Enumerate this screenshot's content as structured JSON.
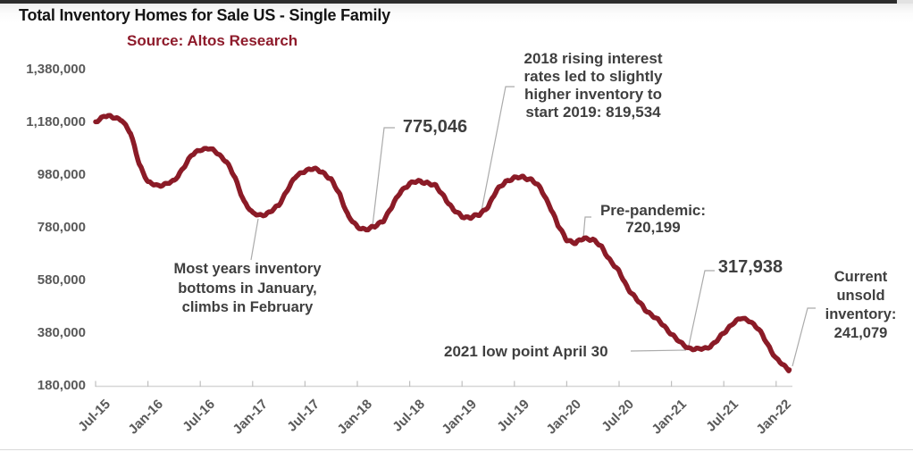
{
  "page": {
    "title": "Total Inventory Homes for Sale US - Single Family",
    "source": "Source: Altos Research"
  },
  "colors": {
    "line": "#8B1B27",
    "source_text": "#8E1B2B",
    "annotation_text": "#3f3f3f",
    "axis_label": "#595959",
    "axis_line": "#d6d6d6",
    "tick": "#bfbfbf",
    "leader": "#ababab",
    "top_bar": "#2b2b2b"
  },
  "chart_data": {
    "type": "line",
    "title": "Total Inventory Homes for Sale US - Single Family",
    "source": "Altos Research",
    "grid": false,
    "legend": "none",
    "ylim": [
      180000,
      1380000
    ],
    "x_unit": "months since Jul-2015",
    "y_ticks": [
      {
        "label": "1,380,000",
        "v": 1380000
      },
      {
        "label": "1,180,000",
        "v": 1180000
      },
      {
        "label": "980,000",
        "v": 980000
      },
      {
        "label": "780,000",
        "v": 780000
      },
      {
        "label": "580,000",
        "v": 580000
      },
      {
        "label": "380,000",
        "v": 380000
      },
      {
        "label": "180,000",
        "v": 180000
      }
    ],
    "x_ticks": [
      {
        "label": "Jul-15",
        "m": 0
      },
      {
        "label": "Jan-16",
        "m": 6
      },
      {
        "label": "Jul-16",
        "m": 12
      },
      {
        "label": "Jan-17",
        "m": 18
      },
      {
        "label": "Jul-17",
        "m": 24
      },
      {
        "label": "Jan-18",
        "m": 30
      },
      {
        "label": "Jul-18",
        "m": 36
      },
      {
        "label": "Jan-19",
        "m": 42
      },
      {
        "label": "Jul-19",
        "m": 48
      },
      {
        "label": "Jan-20",
        "m": 54
      },
      {
        "label": "Jul-20",
        "m": 60
      },
      {
        "label": "Jan-21",
        "m": 66
      },
      {
        "label": "Jul-21",
        "m": 72
      },
      {
        "label": "Jan-22",
        "m": 78
      }
    ],
    "series": [
      {
        "name": "Total single-family inventory",
        "points": [
          [
            0,
            1182000
          ],
          [
            1,
            1206000
          ],
          [
            2,
            1198000
          ],
          [
            3,
            1192000
          ],
          [
            4,
            1138000
          ],
          [
            5,
            1024000
          ],
          [
            6,
            952000
          ],
          [
            7,
            940000
          ],
          [
            8,
            946000
          ],
          [
            9,
            956000
          ],
          [
            10,
            1006000
          ],
          [
            11,
            1054000
          ],
          [
            12,
            1078000
          ],
          [
            13,
            1081000
          ],
          [
            14,
            1063000
          ],
          [
            15,
            1032000
          ],
          [
            16,
            967000
          ],
          [
            17,
            882000
          ],
          [
            18,
            833000
          ],
          [
            19,
            828000
          ],
          [
            20,
            838000
          ],
          [
            21,
            866000
          ],
          [
            22,
            926000
          ],
          [
            23,
            976000
          ],
          [
            24,
            998000
          ],
          [
            25,
            1003000
          ],
          [
            26,
            993000
          ],
          [
            27,
            962000
          ],
          [
            28,
            905000
          ],
          [
            29,
            822000
          ],
          [
            30,
            781000
          ],
          [
            31,
            775046
          ],
          [
            32,
            783000
          ],
          [
            33,
            809000
          ],
          [
            34,
            862000
          ],
          [
            35,
            920000
          ],
          [
            36,
            948000
          ],
          [
            37,
            956000
          ],
          [
            38,
            952000
          ],
          [
            39,
            937000
          ],
          [
            40,
            897000
          ],
          [
            41,
            847000
          ],
          [
            42,
            823000
          ],
          [
            43,
            819534
          ],
          [
            44,
            829000
          ],
          [
            45,
            863000
          ],
          [
            46,
            922000
          ],
          [
            47,
            957000
          ],
          [
            48,
            968000
          ],
          [
            49,
            973000
          ],
          [
            50,
            962000
          ],
          [
            51,
            929000
          ],
          [
            52,
            868000
          ],
          [
            53,
            788000
          ],
          [
            54,
            736000
          ],
          [
            55,
            720199
          ],
          [
            56,
            742000
          ],
          [
            57,
            735000
          ],
          [
            58,
            706000
          ],
          [
            59,
            656000
          ],
          [
            60,
            612000
          ],
          [
            61,
            552000
          ],
          [
            62,
            508000
          ],
          [
            63,
            470000
          ],
          [
            64,
            443000
          ],
          [
            65,
            412000
          ],
          [
            66,
            378000
          ],
          [
            67,
            343000
          ],
          [
            68,
            324000
          ],
          [
            69,
            317938
          ],
          [
            70,
            323000
          ],
          [
            71,
            344000
          ],
          [
            72,
            380000
          ],
          [
            73,
            418000
          ],
          [
            74,
            436000
          ],
          [
            75,
            428000
          ],
          [
            76,
            394000
          ],
          [
            77,
            340000
          ],
          [
            78,
            283000
          ],
          [
            79,
            252000
          ],
          [
            79.5,
            241079
          ]
        ]
      }
    ],
    "annotations": [
      {
        "id": "jan18-low",
        "text": "775,046",
        "value": 775046
      },
      {
        "id": "rates-2019",
        "text": "2018 rising interest\nrates led to slightly\nhigher inventory to\nstart 2019: 819,534",
        "value": 819534
      },
      {
        "id": "pre-pandemic",
        "text": "Pre-pandemic:\n720,199",
        "value": 720199
      },
      {
        "id": "january-bottom",
        "text": "Most years inventory\nbottoms in January,\nclimbs in February"
      },
      {
        "id": "low-2021-date",
        "text": "2021 low point April 30",
        "value": 317938
      },
      {
        "id": "low-2021-value",
        "text": "317,938",
        "value": 317938
      },
      {
        "id": "current",
        "text": "Current\nunsold\ninventory:\n241,079",
        "value": 241079
      }
    ]
  }
}
